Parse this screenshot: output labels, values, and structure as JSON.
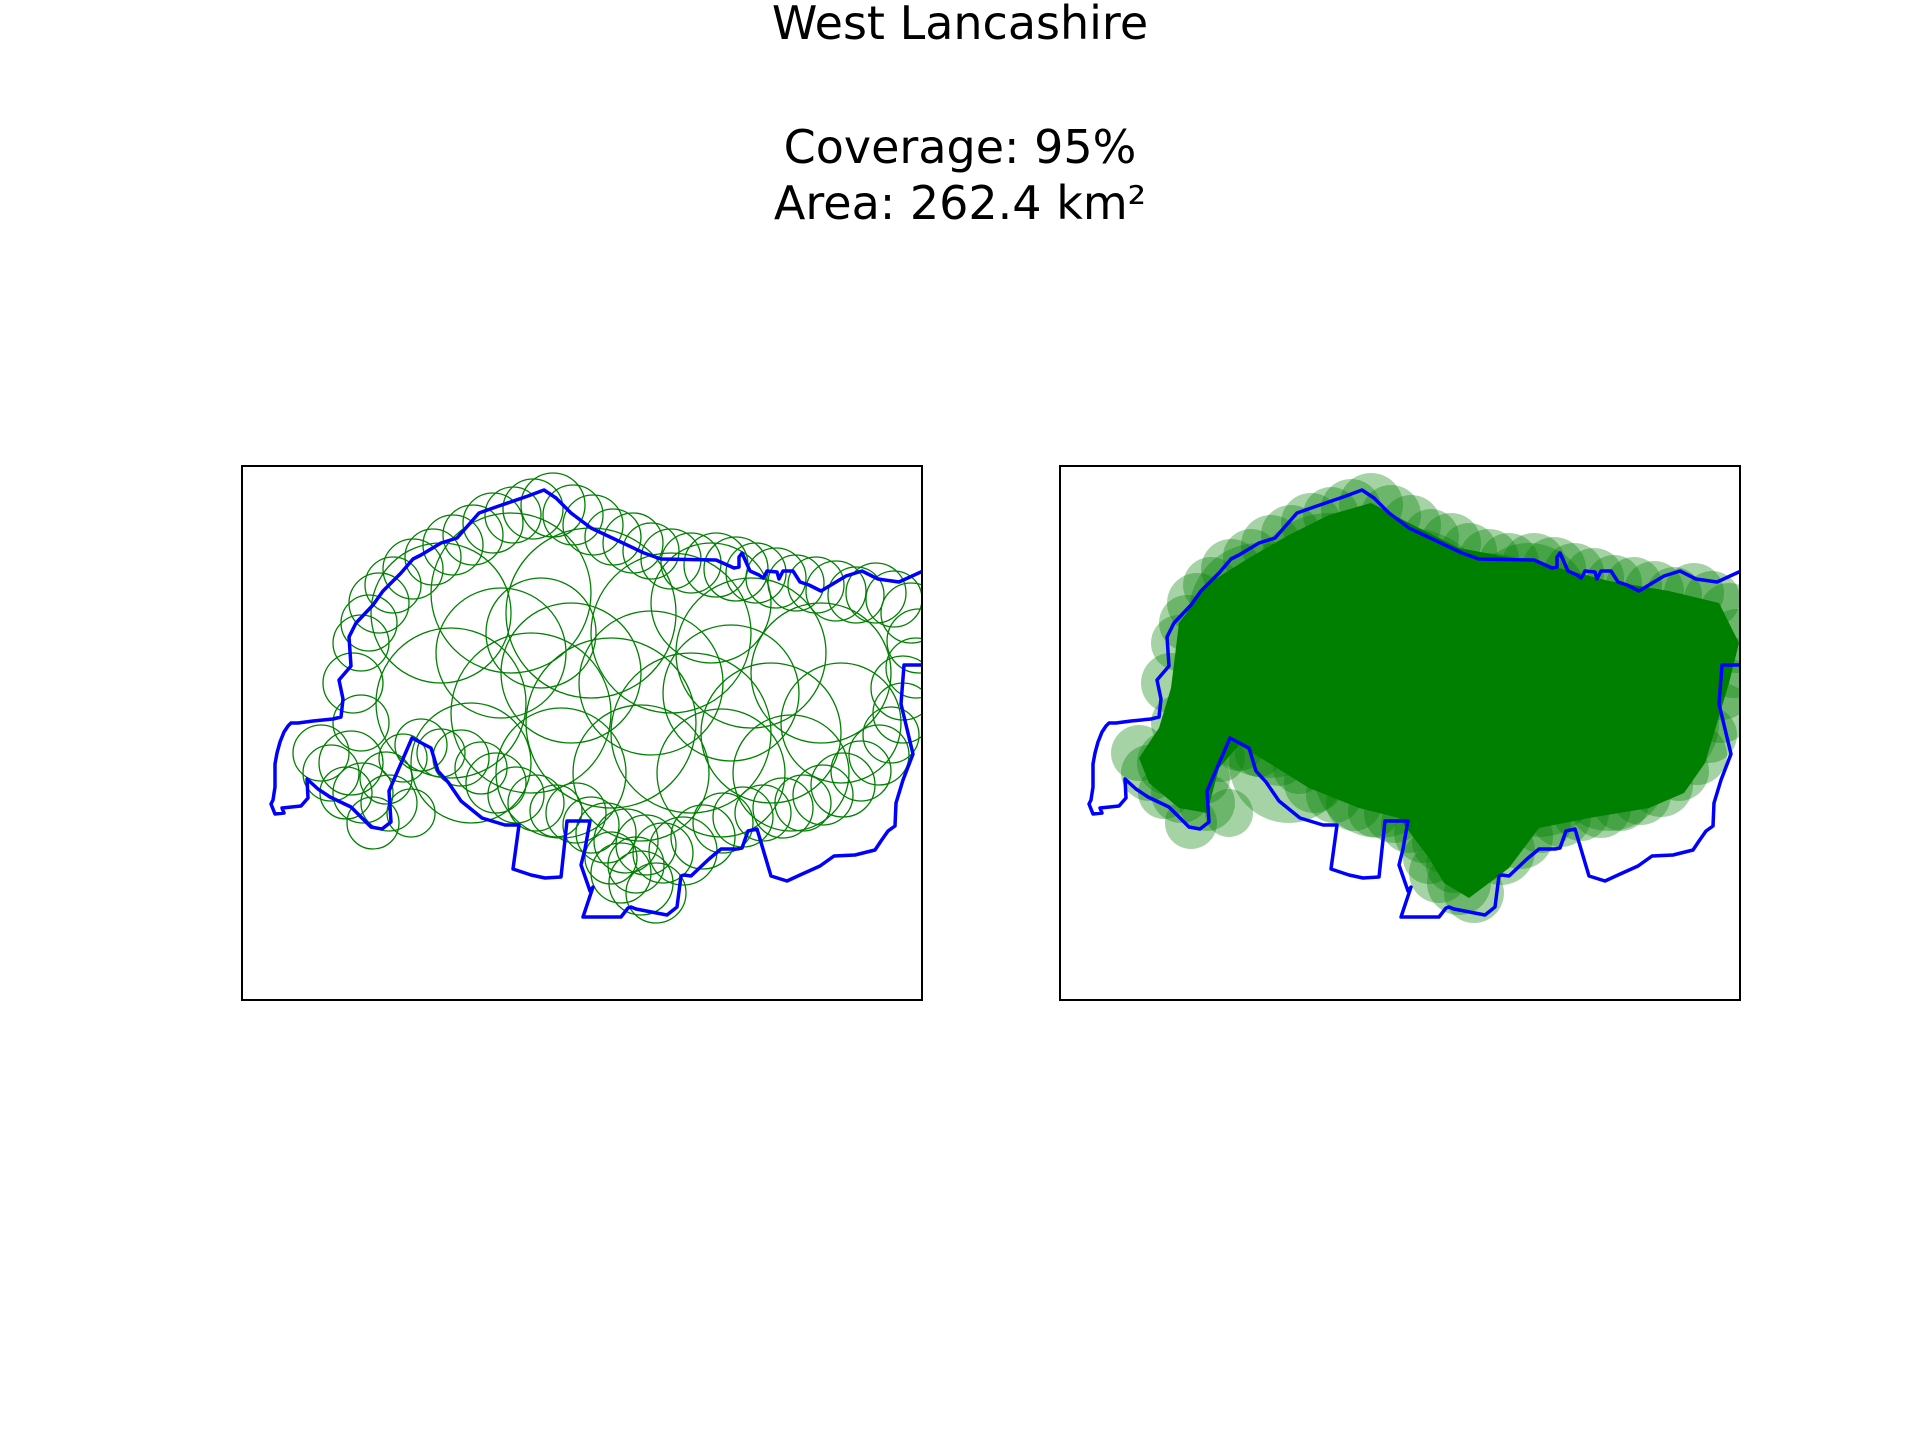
{
  "figure": {
    "title": "West Lancashire",
    "coverage_text": "Coverage: 95%",
    "area_text": "Area: 262.4 km²"
  },
  "colors": {
    "boundary": "#0000ff",
    "coverage": "#008000",
    "frame": "#000000"
  },
  "panels": [
    {
      "name": "outline-circles",
      "style": "green circle outlines over boundary"
    },
    {
      "name": "filled-circles",
      "style": "semi-transparent filled green circles over boundary"
    }
  ]
}
